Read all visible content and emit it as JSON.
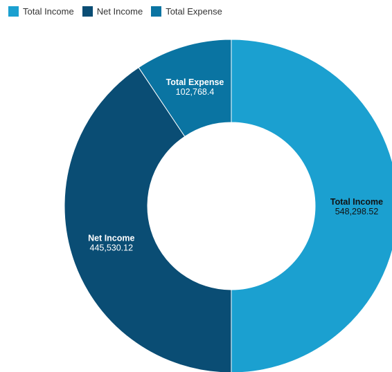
{
  "chart_data": {
    "type": "pie",
    "variant": "donut",
    "legend": "top-left",
    "series": [
      {
        "name": "Total Income",
        "value": 548298.52,
        "value_label": "548,298.52",
        "color": "#1ba0d0",
        "label_color": "#111111"
      },
      {
        "name": "Net Income",
        "value": 445530.12,
        "value_label": "445,530.12",
        "color": "#0a4d74",
        "label_color": "#ffffff"
      },
      {
        "name": "Total Expense",
        "value": 102768.4,
        "value_label": "102,768.4",
        "color": "#0a74a2",
        "label_color": "#ffffff"
      }
    ]
  }
}
